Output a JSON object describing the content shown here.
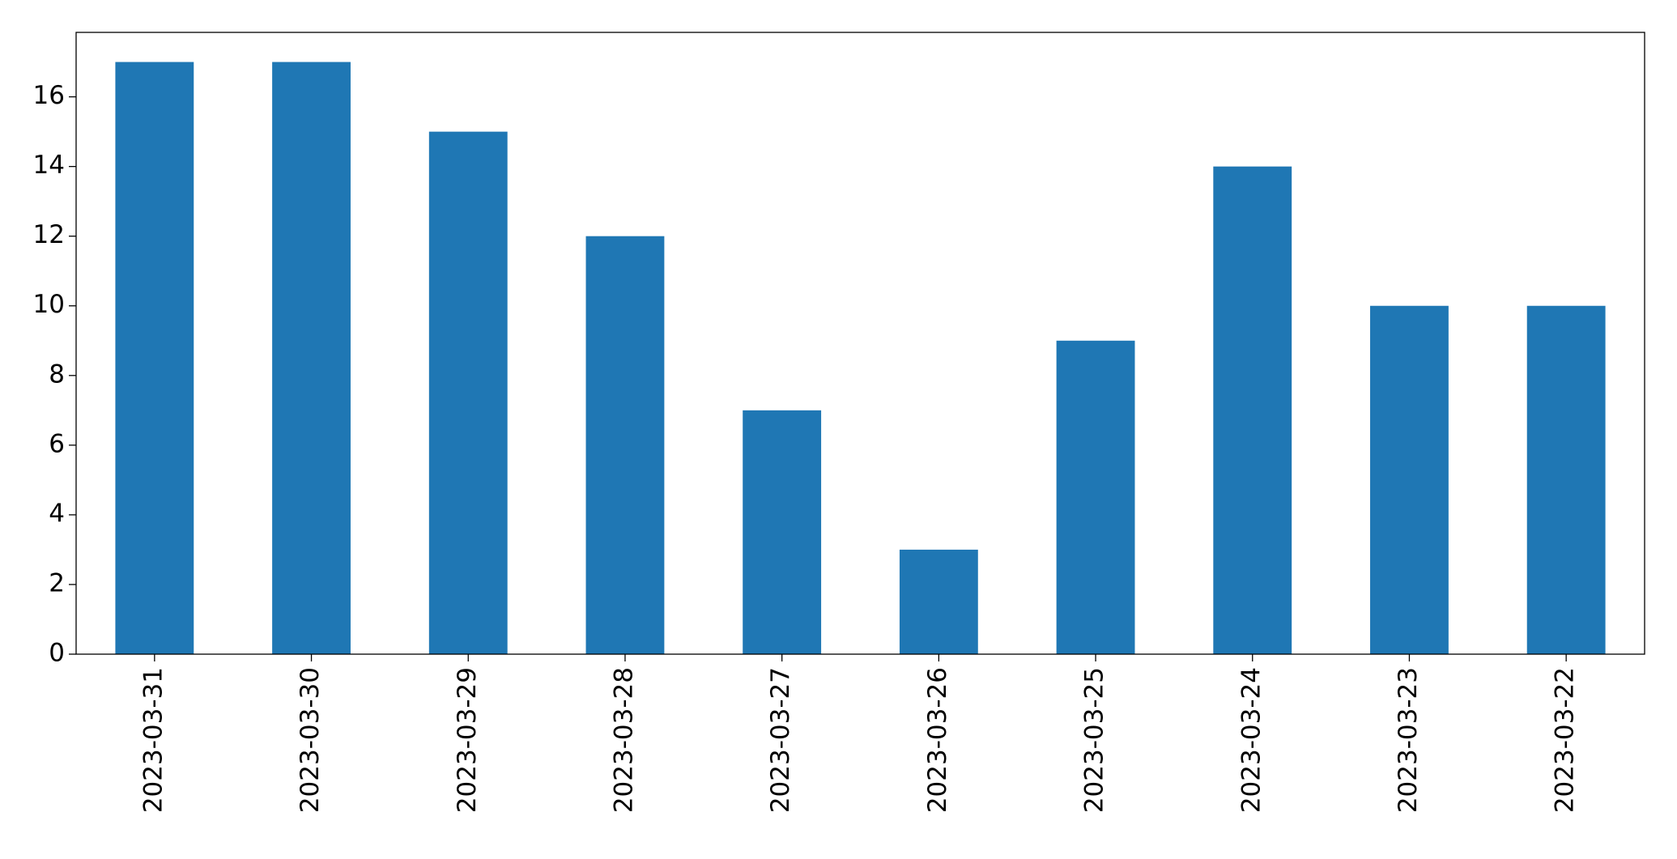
{
  "chart_data": {
    "type": "bar",
    "categories": [
      "2023-03-31",
      "2023-03-30",
      "2023-03-29",
      "2023-03-28",
      "2023-03-27",
      "2023-03-26",
      "2023-03-25",
      "2023-03-24",
      "2023-03-23",
      "2023-03-22"
    ],
    "values": [
      17,
      17,
      15,
      12,
      7,
      3,
      9,
      14,
      10,
      10
    ],
    "color": "#1f77b4",
    "ylim": [
      0,
      17.85
    ],
    "yticks": [
      0,
      2,
      4,
      6,
      8,
      10,
      12,
      14,
      16
    ],
    "grid": false
  }
}
